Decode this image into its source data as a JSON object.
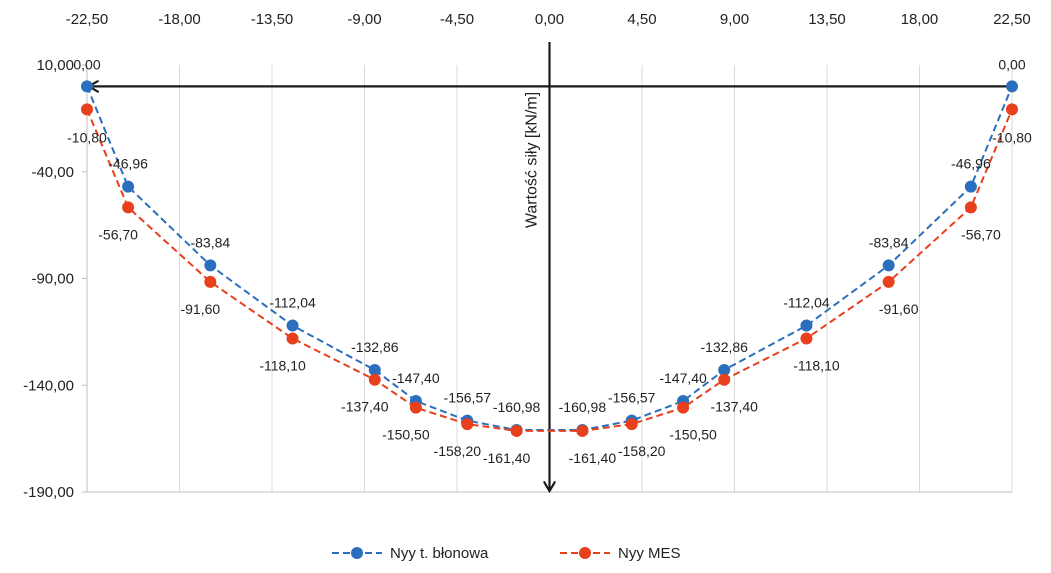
{
  "chart_data": {
    "type": "line",
    "x": [
      -22.5,
      -20.5,
      -16.5,
      -12.5,
      -8.5,
      -6.5,
      -4.0,
      -1.6,
      1.6,
      4.0,
      6.5,
      8.5,
      12.5,
      16.5,
      20.5,
      22.5
    ],
    "x_ticks": [
      "-22,50",
      "-18,00",
      "-13,50",
      "-9,00",
      "-4,50",
      "0,00",
      "4,50",
      "9,00",
      "13,50",
      "18,00",
      "22,50"
    ],
    "x_tick_values": [
      -22.5,
      -18.0,
      -13.5,
      -9.0,
      -4.5,
      0.0,
      4.5,
      9.0,
      13.5,
      18.0,
      22.5
    ],
    "xlim": [
      -22.5,
      22.5
    ],
    "y_ticks": [
      "10,00",
      "-40,00",
      "-90,00",
      "-140,00",
      "-190,00"
    ],
    "y_tick_values": [
      10,
      -40,
      -90,
      -140,
      -190
    ],
    "ylim": [
      -190,
      10
    ],
    "ylabel": "Wartość siły [kN/m]",
    "xlabel": "",
    "title": "",
    "grid": "vertical",
    "legend_position": "bottom",
    "series": [
      {
        "name": "Nyy t. błonowa",
        "color": "#2a6fbd",
        "values": [
          0.0,
          -46.96,
          -83.84,
          -112.04,
          -132.86,
          -147.4,
          -156.57,
          -160.98,
          -160.98,
          -156.57,
          -147.4,
          -132.86,
          -112.04,
          -83.84,
          -46.96,
          0.0
        ],
        "labels": [
          "0,00",
          "-46,96",
          "-83,84",
          "-112,04",
          "-132,86",
          "-147,40",
          "-156,57",
          "-160,98",
          "-160,98",
          "-156,57",
          "-147,40",
          "-132,86",
          "-112,04",
          "-83,84",
          "-46,96",
          "0,00"
        ]
      },
      {
        "name": "Nyy MES",
        "color": "#e8401c",
        "values": [
          -10.8,
          -56.7,
          -91.6,
          -118.1,
          -137.4,
          -150.5,
          -158.2,
          -161.4,
          -161.4,
          -158.2,
          -150.5,
          -137.4,
          -118.1,
          -91.6,
          -56.7,
          -10.8
        ],
        "labels": [
          "-10,80",
          "-56,70",
          "-91,60",
          "-118,10",
          "-137,40",
          "-150,50",
          "-158,20",
          "-161,40",
          "-161,40",
          "-158,20",
          "-150,50",
          "-137,40",
          "-118,10",
          "-91,60",
          "-56,70",
          "-10,80"
        ]
      }
    ]
  }
}
